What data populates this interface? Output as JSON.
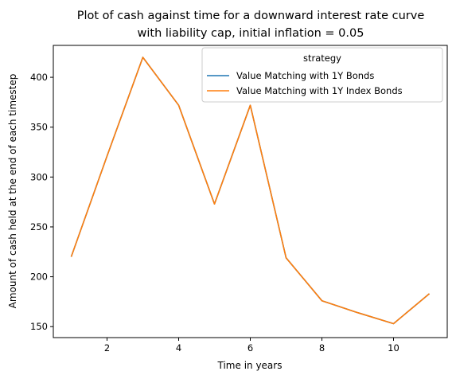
{
  "chart_data": {
    "type": "line",
    "title": "Plot of cash against time for a downward interest rate curve\nwith liability cap, initial inflation = 0.05",
    "xlabel": "Time in years",
    "ylabel": "Amount of cash held at the end of each timestep",
    "xlim": [
      0.5,
      11.5
    ],
    "ylim": [
      139,
      432
    ],
    "xticks": [
      2,
      4,
      6,
      8,
      10
    ],
    "yticks": [
      150,
      200,
      250,
      300,
      350,
      400
    ],
    "grid": false,
    "legend": {
      "title": "strategy",
      "placement": "upper-right"
    },
    "x": [
      1,
      2,
      3,
      4,
      5,
      6,
      7,
      8,
      9,
      10,
      11
    ],
    "series": [
      {
        "name": "Value Matching with 1Y Bonds",
        "color": "#1f77b4",
        "values": [
          220,
          321,
          420,
          372,
          273,
          372,
          219,
          176,
          164,
          153,
          183
        ]
      },
      {
        "name": "Value Matching with 1Y Index Bonds",
        "color": "#ff7f0e",
        "values": [
          220,
          321,
          420,
          372,
          273,
          372,
          219,
          176,
          164,
          153,
          183
        ]
      }
    ]
  }
}
